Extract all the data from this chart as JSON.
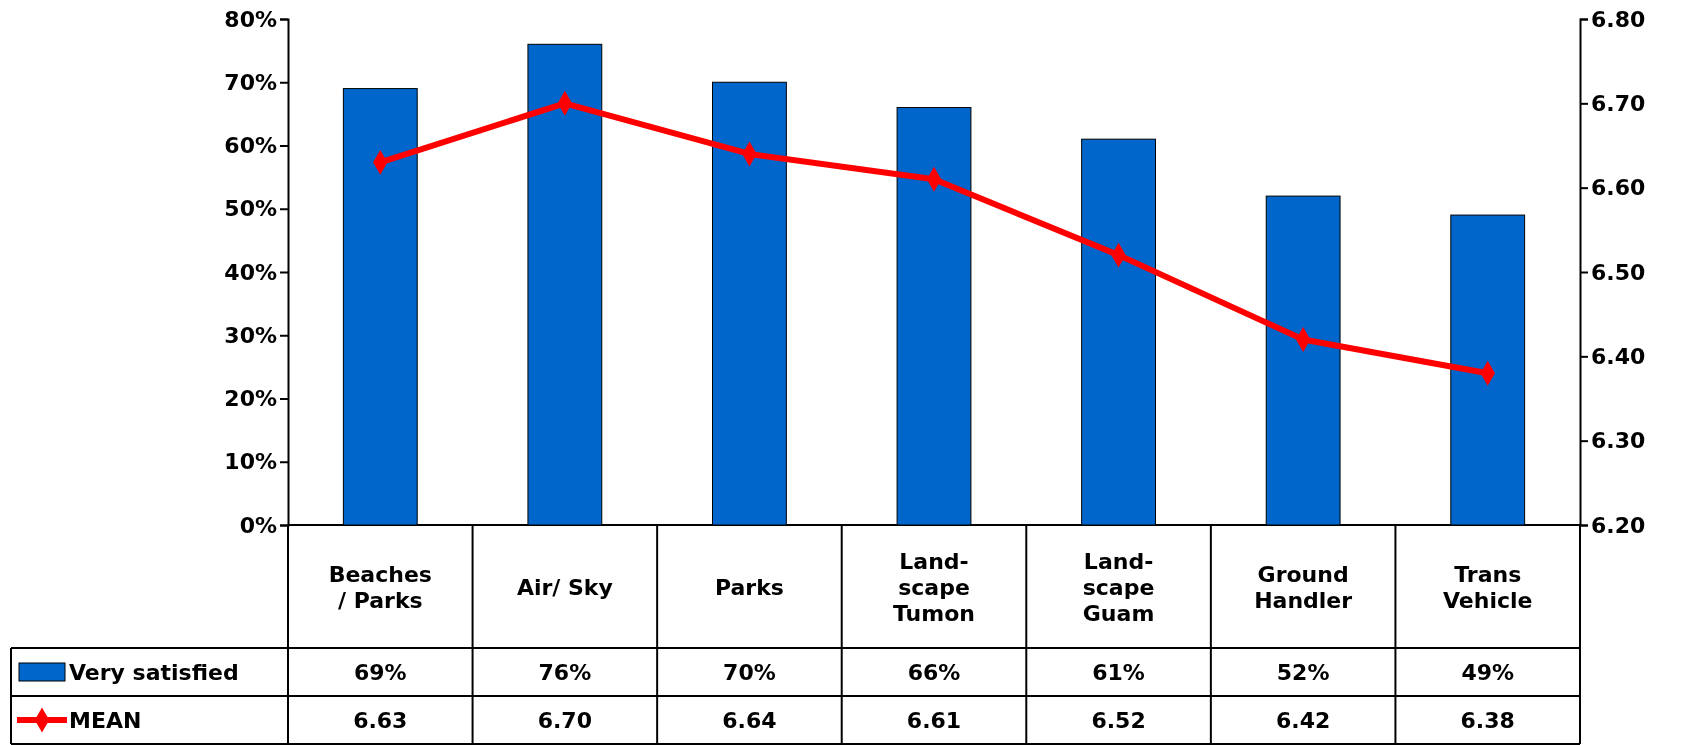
{
  "chart_data": {
    "type": "bar",
    "categories": [
      "Beaches\n/ Parks",
      "Air/ Sky",
      "Parks",
      "Land-\nscape\nTumon",
      "Land-\nscape\nGuam",
      "Ground\nHandler",
      "Trans\nVehicle"
    ],
    "series": [
      {
        "name": "Very satisfied",
        "color": "#0066cc",
        "values": [
          69,
          76,
          70,
          66,
          61,
          52,
          49
        ],
        "value_labels": [
          "69%",
          "76%",
          "70%",
          "66%",
          "61%",
          "52%",
          "49%"
        ]
      },
      {
        "name": "MEAN",
        "type": "line",
        "axis": "y2",
        "color": "#ff0000",
        "values": [
          6.63,
          6.7,
          6.64,
          6.61,
          6.52,
          6.42,
          6.38
        ],
        "value_labels": [
          "6.63",
          "6.70",
          "6.64",
          "6.61",
          "6.52",
          "6.42",
          "6.38"
        ]
      }
    ],
    "ylim": [
      0,
      80
    ],
    "yticks": [
      {
        "value": 0,
        "label": "0%"
      },
      {
        "value": 10,
        "label": "10%"
      },
      {
        "value": 20,
        "label": "20%"
      },
      {
        "value": 30,
        "label": "30%"
      },
      {
        "value": 40,
        "label": "40%"
      },
      {
        "value": 50,
        "label": "50%"
      },
      {
        "value": 60,
        "label": "60%"
      },
      {
        "value": 70,
        "label": "70%"
      },
      {
        "value": 80,
        "label": "80%"
      }
    ],
    "y2lim": [
      6.2,
      6.8
    ],
    "y2ticks": [
      {
        "value": 6.2,
        "label": "6.20"
      },
      {
        "value": 6.3,
        "label": "6.30"
      },
      {
        "value": 6.4,
        "label": "6.40"
      },
      {
        "value": 6.5,
        "label": "6.50"
      },
      {
        "value": 6.6,
        "label": "6.60"
      },
      {
        "value": 6.7,
        "label": "6.70"
      },
      {
        "value": 6.8,
        "label": "6.80"
      }
    ],
    "grid": false,
    "legend": "bottom",
    "marker": "diamond",
    "line_style": "solid"
  }
}
